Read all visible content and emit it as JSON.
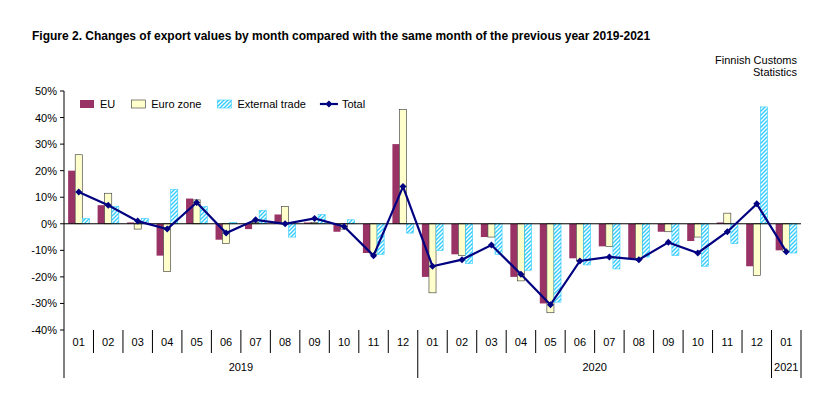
{
  "chart_data": {
    "type": "bar",
    "title": "Figure 2. Changes of export values by month compared with the same month of the previous year 2019-2021",
    "annotations": [
      "Finnish Customs",
      "Statistics"
    ],
    "categories": [
      "01",
      "02",
      "03",
      "04",
      "05",
      "06",
      "07",
      "08",
      "09",
      "10",
      "11",
      "12",
      "01",
      "02",
      "03",
      "04",
      "05",
      "06",
      "07",
      "08",
      "09",
      "10",
      "11",
      "12",
      "01"
    ],
    "category_groups": [
      {
        "label": "2019",
        "count": 12
      },
      {
        "label": "2020",
        "count": 12
      },
      {
        "label": "2021",
        "count": 1
      }
    ],
    "series": [
      {
        "name": "EU",
        "type": "bar",
        "color": "#993366",
        "values": [
          20,
          7,
          0.5,
          -12,
          9.5,
          -6,
          -2,
          3.5,
          0.5,
          -3,
          -11,
          30,
          -20,
          -11.5,
          -5,
          -20,
          -30,
          -13,
          -8.5,
          -13,
          -3,
          -6.5,
          0.5,
          -16,
          -10
        ]
      },
      {
        "name": "Euro zone",
        "type": "bar",
        "color": "#ffffcc",
        "values": [
          26,
          11.5,
          -2,
          -18,
          9,
          -7.5,
          0.5,
          6.5,
          0.5,
          -2,
          -11.5,
          43,
          -26,
          -12,
          -5,
          -21.5,
          -33.5,
          -14,
          -8.5,
          -13.5,
          -3,
          -5,
          4,
          -19.5,
          -10.5
        ]
      },
      {
        "name": "External trade",
        "type": "bar",
        "color": "#33ccff",
        "values": [
          2,
          6.5,
          2,
          13,
          6.5,
          0.5,
          5,
          -5,
          3.5,
          1.5,
          -11.5,
          -3.5,
          -10,
          -15,
          -11.5,
          -17.5,
          -29.5,
          -15.5,
          -17,
          -12.5,
          -12,
          -16,
          -7.5,
          44,
          -11
        ]
      },
      {
        "name": "Total",
        "type": "line",
        "color": "#000080",
        "marker": "diamond",
        "line_style": "solid",
        "values": [
          12,
          7,
          1,
          -2,
          8,
          -3.5,
          1.5,
          0,
          2,
          -1,
          -12,
          14,
          -16,
          -13.5,
          -8,
          -19,
          -30.5,
          -14,
          -12.5,
          -13.5,
          -7,
          -11,
          -3,
          7.5,
          -10.5
        ]
      }
    ],
    "ylim": [
      -40,
      50
    ],
    "yticks": [
      {
        "value": -40,
        "label": "-40%"
      },
      {
        "value": -30,
        "label": "-30%"
      },
      {
        "value": -20,
        "label": "-20%"
      },
      {
        "value": -10,
        "label": "-10%"
      },
      {
        "value": 0,
        "label": "0%"
      },
      {
        "value": 10,
        "label": "10%"
      },
      {
        "value": 20,
        "label": "20%"
      },
      {
        "value": 30,
        "label": "30%"
      },
      {
        "value": 40,
        "label": "40%"
      },
      {
        "value": 50,
        "label": "50%"
      }
    ],
    "grid": false,
    "legend": "top-left"
  }
}
